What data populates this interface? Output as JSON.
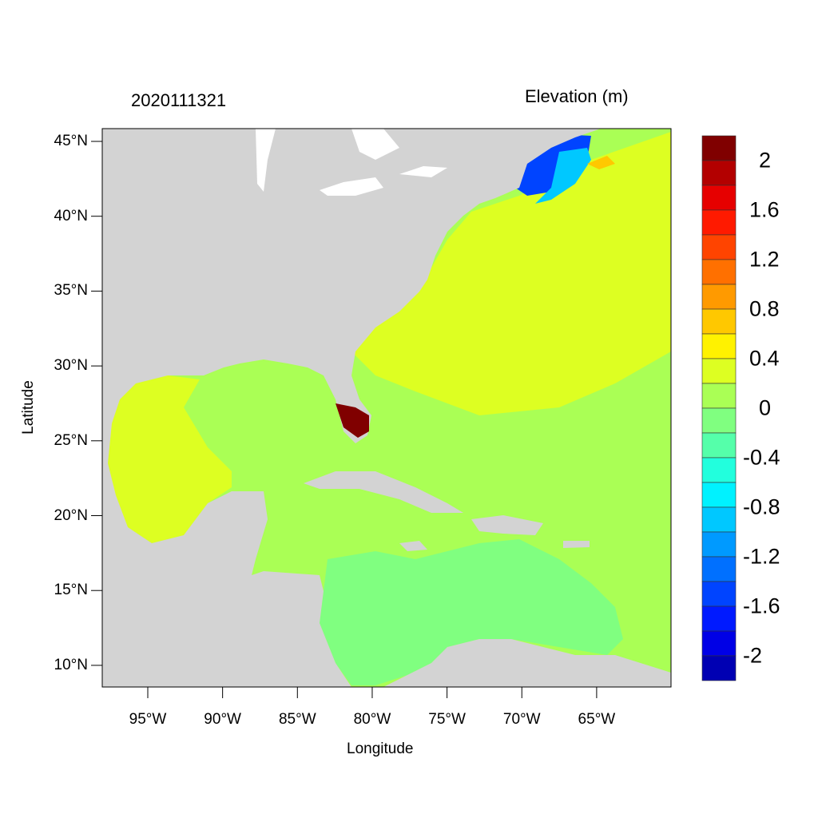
{
  "title_left": "2020111321",
  "title_right": "Elevation (m)",
  "map": {
    "xlabel": "Longitude",
    "ylabel": "Latitude",
    "lon_range": [
      -98,
      -60
    ],
    "lat_range": [
      8.6,
      45.8
    ],
    "x_ticks": [
      {
        "lon": -95,
        "label": "95°W"
      },
      {
        "lon": -90,
        "label": "90°W"
      },
      {
        "lon": -85,
        "label": "85°W"
      },
      {
        "lon": -80,
        "label": "80°W"
      },
      {
        "lon": -75,
        "label": "75°W"
      },
      {
        "lon": -70,
        "label": "70°W"
      },
      {
        "lon": -65,
        "label": "65°W"
      }
    ],
    "y_ticks": [
      {
        "lat": 45,
        "label": "45°N"
      },
      {
        "lat": 40,
        "label": "40°N"
      },
      {
        "lat": 35,
        "label": "35°N"
      },
      {
        "lat": 30,
        "label": "30°N"
      },
      {
        "lat": 25,
        "label": "25°N"
      },
      {
        "lat": 20,
        "label": "20°N"
      },
      {
        "lat": 15,
        "label": "15°N"
      },
      {
        "lat": 10,
        "label": "10°N"
      }
    ],
    "land_color": "#d3d3d3"
  },
  "colorbar": {
    "colors": [
      "#800000",
      "#b30000",
      "#e60000",
      "#ff1a00",
      "#ff4400",
      "#ff7000",
      "#ff9a00",
      "#ffc800",
      "#fff200",
      "#ddff22",
      "#aaff55",
      "#80ff80",
      "#55ffaa",
      "#22ffdd",
      "#00f2ff",
      "#00c8ff",
      "#009aff",
      "#0070ff",
      "#0044ff",
      "#001aff",
      "#0000e6",
      "#0000b3"
    ],
    "labels": [
      {
        "value": 2,
        "label": "2"
      },
      {
        "value": 1.6,
        "label": "1.6"
      },
      {
        "value": 1.2,
        "label": "1.2"
      },
      {
        "value": 0.8,
        "label": "0.8"
      },
      {
        "value": 0.4,
        "label": "0.4"
      },
      {
        "value": 0,
        "label": "0"
      },
      {
        "value": -0.4,
        "label": "-0.4"
      },
      {
        "value": -0.8,
        "label": "-0.8"
      },
      {
        "value": -1.2,
        "label": "-1.2"
      },
      {
        "value": -1.6,
        "label": "-1.6"
      },
      {
        "value": -2,
        "label": "-2"
      }
    ]
  }
}
